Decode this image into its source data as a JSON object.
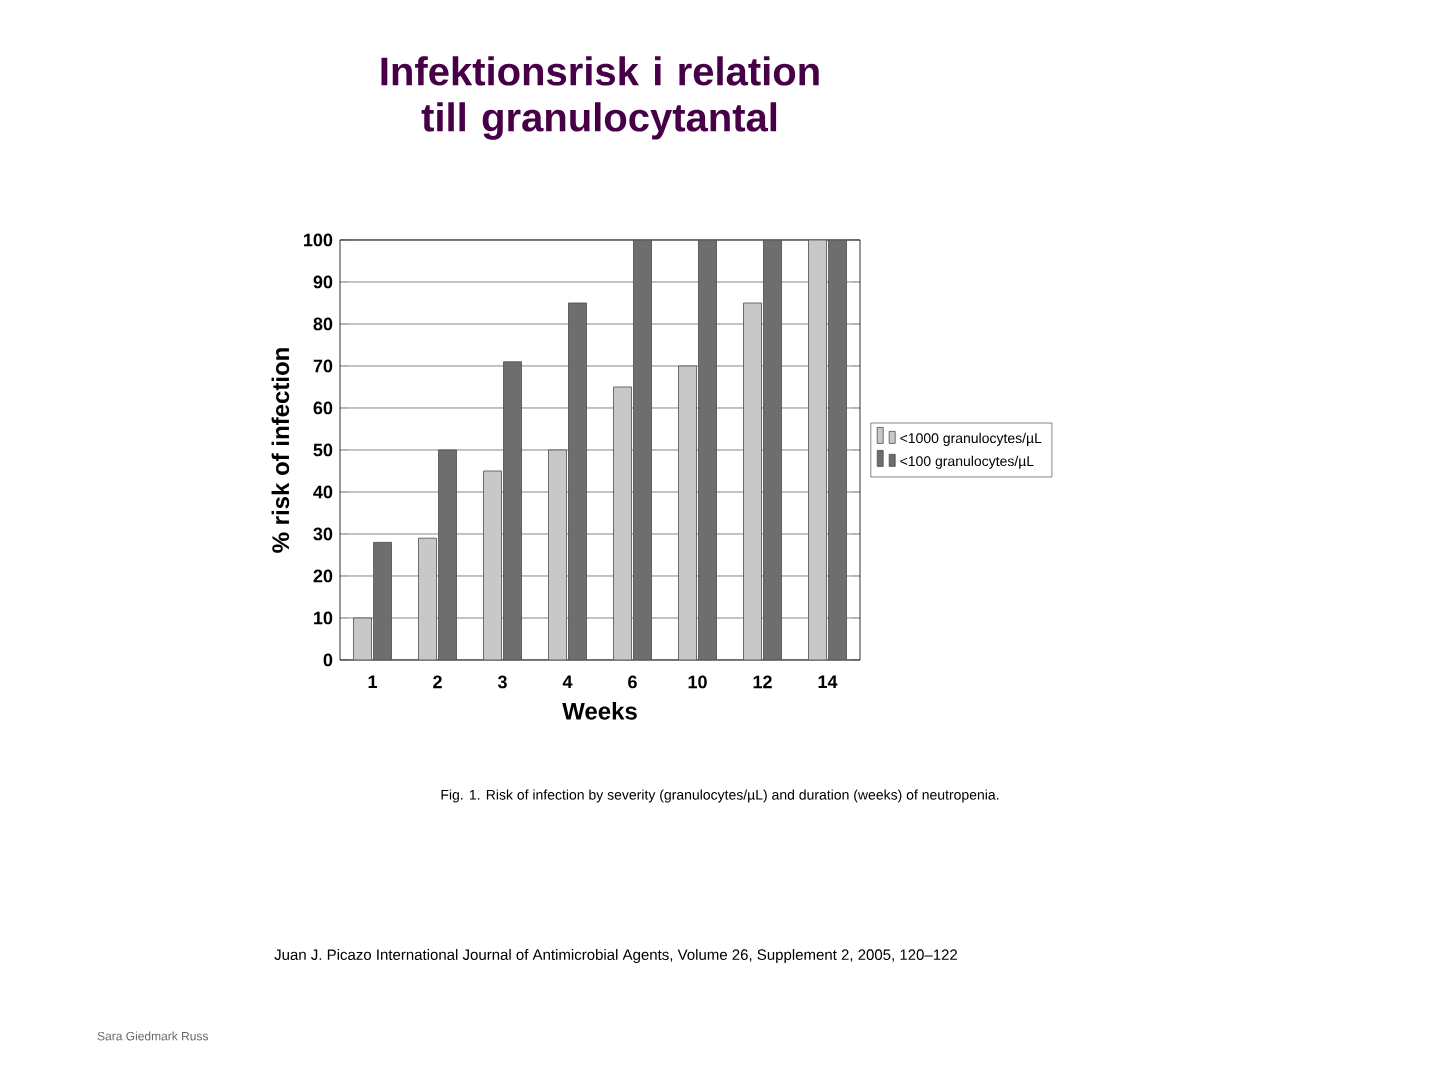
{
  "chart_data": {
    "type": "bar",
    "title": "Infektionsrisk i relation till granulocytantal",
    "xlabel": "Weeks",
    "ylabel": "% risk of infection",
    "categories": [
      "1",
      "2",
      "3",
      "4",
      "6",
      "10",
      "12",
      "14"
    ],
    "series": [
      {
        "name": "<1000 granulocytes/µL",
        "color": "#c8c8c8",
        "values": [
          10,
          29,
          45,
          50,
          65,
          70,
          85,
          100
        ]
      },
      {
        "name": "<100 granulocytes/µL",
        "color": "#6e6e6e",
        "values": [
          28,
          50,
          71,
          85,
          100,
          100,
          100,
          100
        ]
      }
    ],
    "ylim": [
      0,
      100
    ],
    "yticks": [
      0,
      10,
      20,
      30,
      40,
      50,
      60,
      70,
      80,
      90,
      100
    ],
    "grid": "y",
    "legend": "right",
    "annotations": [
      "Fig. 1. Risk of infection by severity (granulocytes/µL) and duration (weeks) of neutropenia.",
      "Juan J. Picazo  International Journal of Antimicrobial Agents, Volume 26, Supplement 2, 2005, 120–122",
      "Sara Giedmark Russ"
    ]
  }
}
